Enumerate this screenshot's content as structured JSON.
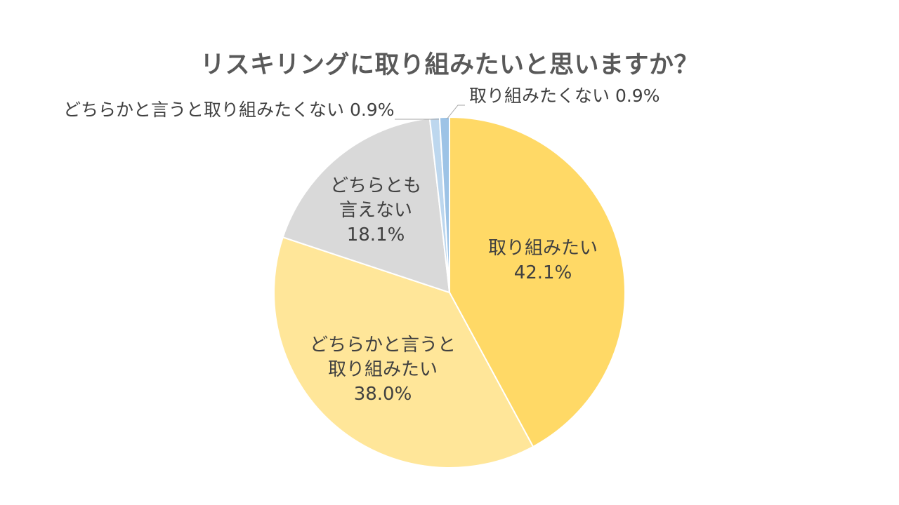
{
  "title": "リスキリングに取り組みたいと思いますか？",
  "chart_data": {
    "type": "pie",
    "title": "リスキリングに取り組みたいと思いますか？",
    "start_angle_deg": 0,
    "direction": "clockwise",
    "slices": [
      {
        "label": "取り組みたい",
        "label_lines": [
          "取り組みたい"
        ],
        "value": 42.1,
        "display": "42.1%",
        "color": "#FFD966"
      },
      {
        "label": "どちらかと言うと取り組みたい",
        "label_lines": [
          "どちらかと言うと",
          "取り組みたい"
        ],
        "value": 38.0,
        "display": "38.0%",
        "color": "#FFE699"
      },
      {
        "label": "どちらとも言えない",
        "label_lines": [
          "どちらとも",
          "言えない"
        ],
        "value": 18.1,
        "display": "18.1%",
        "color": "#D9D9D9"
      },
      {
        "label": "どちらかと言うと取り組みたくない",
        "label_lines": [
          "どちらかと言うと取り組みたくない 0.9%"
        ],
        "value": 0.9,
        "display": "0.9%",
        "color": "#BDD7EE",
        "callout": true
      },
      {
        "label": "取り組みたくない",
        "label_lines": [
          "取り組みたくない 0.9%"
        ],
        "value": 0.9,
        "display": "0.9%",
        "color": "#9DC3E6",
        "callout": true
      }
    ],
    "legend": "none"
  }
}
